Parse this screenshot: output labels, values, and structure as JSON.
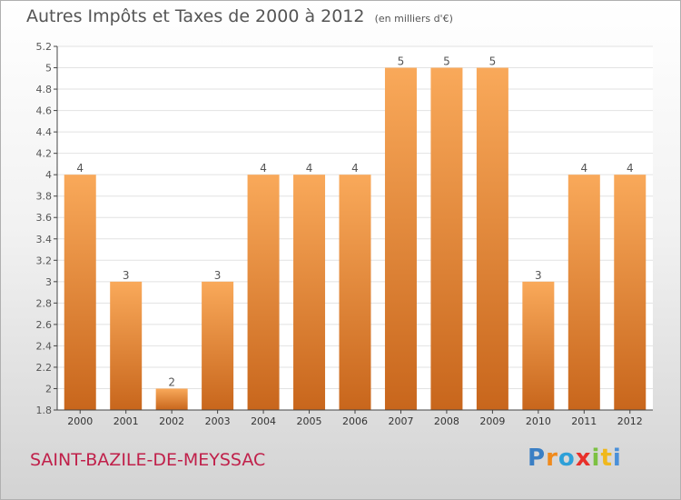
{
  "header": {
    "title": "Autres Impôts et Taxes de 2000 à 2012",
    "unit": "(en milliers d'€)"
  },
  "footer": {
    "commune": "SAINT-BAZILE-DE-MEYSSAC",
    "logo": "Proxiti"
  },
  "colors": {
    "bar_light": "#f9a95a",
    "bar_dark": "#c8661c",
    "grid": "#e2e2e2",
    "axis": "#444444",
    "text": "#555555",
    "commune": "#c0204a"
  },
  "chart_data": {
    "type": "bar",
    "title": "Autres Impôts et Taxes de 2000 à 2012",
    "subtitle": "(en milliers d'€)",
    "categories": [
      "2000",
      "2001",
      "2002",
      "2003",
      "2004",
      "2005",
      "2006",
      "2007",
      "2008",
      "2009",
      "2010",
      "2011",
      "2012"
    ],
    "values": [
      4,
      3,
      2,
      3,
      4,
      4,
      4,
      5,
      5,
      5,
      3,
      4,
      4
    ],
    "data_labels": [
      "4",
      "3",
      "2",
      "3",
      "4",
      "4",
      "4",
      "5",
      "5",
      "5",
      "3",
      "4",
      "4"
    ],
    "y_ticks": [
      "1.8",
      "2",
      "2.2",
      "2.4",
      "2.6",
      "2.8",
      "3",
      "3.2",
      "3.4",
      "3.6",
      "3.8",
      "4",
      "4.2",
      "4.4",
      "4.6",
      "4.8",
      "5",
      "5.2"
    ],
    "ylim": [
      1.8,
      5.2
    ],
    "grid": true,
    "legend": false
  }
}
